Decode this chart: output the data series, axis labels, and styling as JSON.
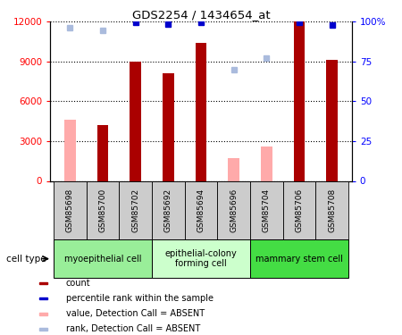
{
  "title": "GDS2254 / 1434654_at",
  "samples": [
    "GSM85698",
    "GSM85700",
    "GSM85702",
    "GSM85692",
    "GSM85694",
    "GSM85696",
    "GSM85704",
    "GSM85706",
    "GSM85708"
  ],
  "count_present": [
    null,
    4200,
    9000,
    8100,
    10400,
    null,
    null,
    12000,
    9100
  ],
  "count_absent": [
    4600,
    null,
    null,
    null,
    null,
    1700,
    2600,
    null,
    null
  ],
  "rank_present_pct": [
    null,
    null,
    99.5,
    98.5,
    99.5,
    null,
    null,
    99.5,
    98.0
  ],
  "rank_absent_pct": [
    96.5,
    94.5,
    null,
    null,
    null,
    70.0,
    77.0,
    null,
    null
  ],
  "ylim_left": [
    0,
    12000
  ],
  "ylim_right": [
    0,
    100
  ],
  "yticks_left": [
    0,
    3000,
    6000,
    9000,
    12000
  ],
  "yticks_right": [
    0,
    25,
    50,
    75,
    100
  ],
  "cell_groups": [
    {
      "label": "myoepithelial cell",
      "span": [
        0,
        2
      ],
      "color": "#99ee99"
    },
    {
      "label": "epithelial-colony\nforming cell",
      "span": [
        3,
        5
      ],
      "color": "#ccffcc"
    },
    {
      "label": "mammary stem cell",
      "span": [
        6,
        8
      ],
      "color": "#44dd44"
    }
  ],
  "count_color": "#aa0000",
  "count_absent_color": "#ffaaaa",
  "rank_color": "#0000cc",
  "rank_absent_color": "#aabbdd",
  "tick_label_bg": "#cccccc",
  "bar_width": 0.35
}
